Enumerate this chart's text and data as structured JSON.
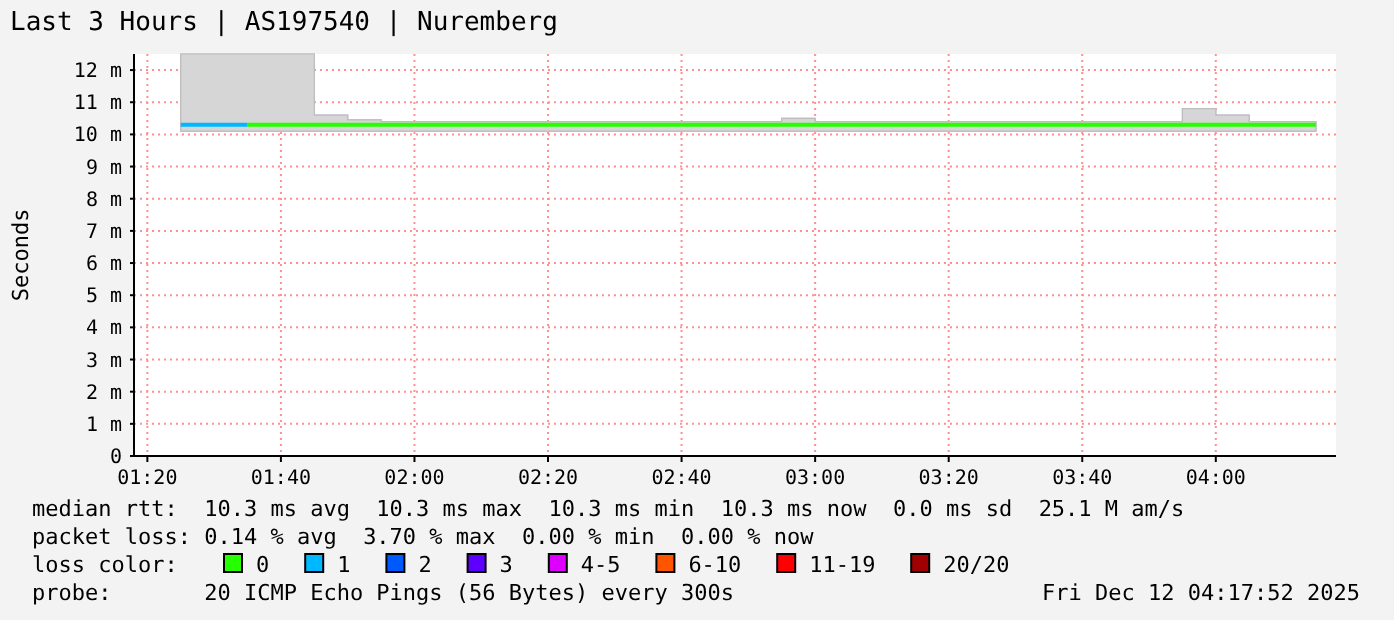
{
  "chart_data": {
    "type": "step",
    "title": "Last 3 Hours | AS197540 | Nuremberg",
    "ylabel": "Seconds",
    "xlim": [
      "2025-12-12T01:18",
      "2025-12-12T04:18"
    ],
    "xticks": [
      {
        "value": "2025-12-12T01:20",
        "label": "01:20"
      },
      {
        "value": "2025-12-12T01:40",
        "label": "01:40"
      },
      {
        "value": "2025-12-12T02:00",
        "label": "02:00"
      },
      {
        "value": "2025-12-12T02:20",
        "label": "02:20"
      },
      {
        "value": "2025-12-12T02:40",
        "label": "02:40"
      },
      {
        "value": "2025-12-12T03:00",
        "label": "03:00"
      },
      {
        "value": "2025-12-12T03:20",
        "label": "03:20"
      },
      {
        "value": "2025-12-12T03:40",
        "label": "03:40"
      },
      {
        "value": "2025-12-12T04:00",
        "label": "04:00"
      }
    ],
    "ylim": [
      0,
      12.5
    ],
    "yticks": [
      0,
      {
        "value": 1,
        "label": "1 m"
      },
      {
        "value": 2,
        "label": "2 m"
      },
      {
        "value": 3,
        "label": "3 m"
      },
      {
        "value": 4,
        "label": "4 m"
      },
      {
        "value": 5,
        "label": "5 m"
      },
      {
        "value": 6,
        "label": "6 m"
      },
      {
        "value": 7,
        "label": "7 m"
      },
      {
        "value": 8,
        "label": "8 m"
      },
      {
        "value": 9,
        "label": "9 m"
      },
      {
        "value": 10,
        "label": "10 m"
      },
      {
        "value": 11,
        "label": "11 m"
      },
      {
        "value": 12,
        "label": "12 m"
      }
    ],
    "grid": true,
    "legend": "bottom",
    "legend_title": "loss color:",
    "series": [
      {
        "name": "0",
        "color": "#26ff00",
        "x": [
          "2025-12-12T01:25",
          "2025-12-12T01:30",
          "2025-12-12T01:35",
          "2025-12-12T01:40",
          "2025-12-12T01:45",
          "2025-12-12T01:50",
          "2025-12-12T01:55",
          "2025-12-12T02:00",
          "2025-12-12T02:05",
          "2025-12-12T02:10",
          "2025-12-12T02:15",
          "2025-12-12T02:20",
          "2025-12-12T02:25",
          "2025-12-12T02:30",
          "2025-12-12T02:35",
          "2025-12-12T02:40",
          "2025-12-12T02:45",
          "2025-12-12T02:50",
          "2025-12-12T02:55",
          "2025-12-12T03:00",
          "2025-12-12T03:05",
          "2025-12-12T03:10",
          "2025-12-12T03:15",
          "2025-12-12T03:20",
          "2025-12-12T03:25",
          "2025-12-12T03:30",
          "2025-12-12T03:35",
          "2025-12-12T03:40",
          "2025-12-12T03:45",
          "2025-12-12T03:50",
          "2025-12-12T03:55",
          "2025-12-12T04:00",
          "2025-12-12T04:05",
          "2025-12-12T04:10",
          "2025-12-12T04:15"
        ],
        "values": [
          null,
          null,
          10.3,
          10.3,
          10.3,
          10.3,
          10.3,
          10.3,
          10.3,
          10.3,
          10.3,
          10.3,
          10.3,
          10.3,
          10.3,
          10.3,
          10.3,
          10.3,
          10.3,
          10.3,
          10.3,
          10.3,
          10.3,
          10.3,
          10.3,
          10.3,
          10.3,
          10.3,
          10.3,
          10.3,
          10.3,
          10.3,
          10.3,
          10.3,
          10.3
        ],
        "upper": [
          12.5,
          12.5,
          12.5,
          12.5,
          10.6,
          10.45,
          10.4,
          10.4,
          10.4,
          10.4,
          10.4,
          10.4,
          10.4,
          10.4,
          10.4,
          10.4,
          10.4,
          10.4,
          10.5,
          10.4,
          10.4,
          10.4,
          10.4,
          10.4,
          10.4,
          10.4,
          10.4,
          10.4,
          10.4,
          10.4,
          10.8,
          10.6,
          10.4,
          10.4,
          10.4
        ],
        "lower": [
          10.1,
          10.1,
          10.1,
          10.1,
          10.1,
          10.1,
          10.1,
          10.1,
          10.1,
          10.1,
          10.1,
          10.1,
          10.1,
          10.1,
          10.1,
          10.1,
          10.1,
          10.1,
          10.1,
          10.1,
          10.1,
          10.1,
          10.1,
          10.1,
          10.1,
          10.1,
          10.1,
          10.1,
          10.1,
          10.1,
          10.1,
          10.1,
          10.1,
          10.1,
          10.1
        ]
      },
      {
        "name": "1",
        "color": "#00b8ff",
        "x": [
          "2025-12-12T01:25",
          "2025-12-12T01:35"
        ],
        "values": [
          10.3,
          10.3
        ]
      },
      {
        "name": "2",
        "color": "#0059ff"
      },
      {
        "name": "3",
        "color": "#5e00ff"
      },
      {
        "name": "4-5",
        "color": "#dd00ff"
      },
      {
        "name": "6-10",
        "color": "#ff5500"
      },
      {
        "name": "11-19",
        "color": "#ff0000"
      },
      {
        "name": "20/20",
        "color": "#a10000"
      }
    ],
    "annotations": [
      "median rtt:  10.3 ms avg  10.3 ms max  10.3 ms min  10.3 ms now  0.0 ms sd  25.1 M am/s",
      "packet loss: 0.14 % avg  3.70 % max  0.00 % min  0.00 % now",
      "probe:       20 ICMP Echo Pings (56 Bytes) every 300s",
      "Fri Dec 12 04:17:52 2025"
    ]
  }
}
